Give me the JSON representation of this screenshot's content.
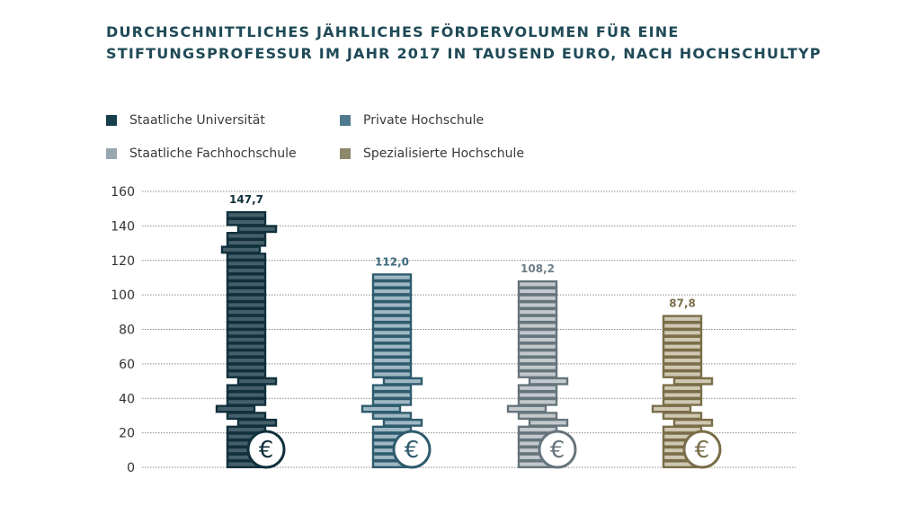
{
  "chart_data": {
    "type": "bar",
    "title": "DURCHSCHNITTLICHES JÄHRLICHES FÖRDERVOLUMEN FÜR EINE STIFTUNGSPROFESSUR IM JAHR 2017 IN TAUSEND EURO, NACH HOCHSCHULTYP",
    "title_lines": [
      "DURCHSCHNITTLICHES JÄHRLICHES FÖRDERVOLUMEN FÜR EINE",
      "STIFTUNGSPROFESSUR IM JAHR 2017 IN TAUSEND EURO, NACH HOCHSCHULTYP"
    ],
    "categories": [
      "Staatliche Universität",
      "Private Hochschule",
      "Staatliche Fachhochschule",
      "Spezialisierte Hochschule"
    ],
    "values": [
      147.7,
      112.0,
      108.2,
      87.8
    ],
    "value_labels": [
      "147,7",
      "112,0",
      "108,2",
      "87,8"
    ],
    "colors": [
      {
        "fill": "#45606b",
        "border": "#10303c",
        "label": "#10303c",
        "legend": "#163f4c"
      },
      {
        "fill": "#9fb8c4",
        "border": "#2f5b6e",
        "label": "#3e6a7e",
        "legend": "#4f7a8d"
      },
      {
        "fill": "#c3c9cd",
        "border": "#66747c",
        "label": "#6e7e87",
        "legend": "#97a6af"
      },
      {
        "fill": "#cfc8b3",
        "border": "#7a6e48",
        "label": "#7a6e48",
        "legend": "#8e8769"
      }
    ],
    "xlabel": "",
    "ylabel": "",
    "ylim": [
      0,
      160
    ],
    "yticks": [
      "0",
      "20",
      "40",
      "60",
      "80",
      "100",
      "120",
      "140",
      "160"
    ],
    "grid": "dotted horizontal",
    "legend_placement": "top-left",
    "icon": "euro-coin-icon"
  }
}
